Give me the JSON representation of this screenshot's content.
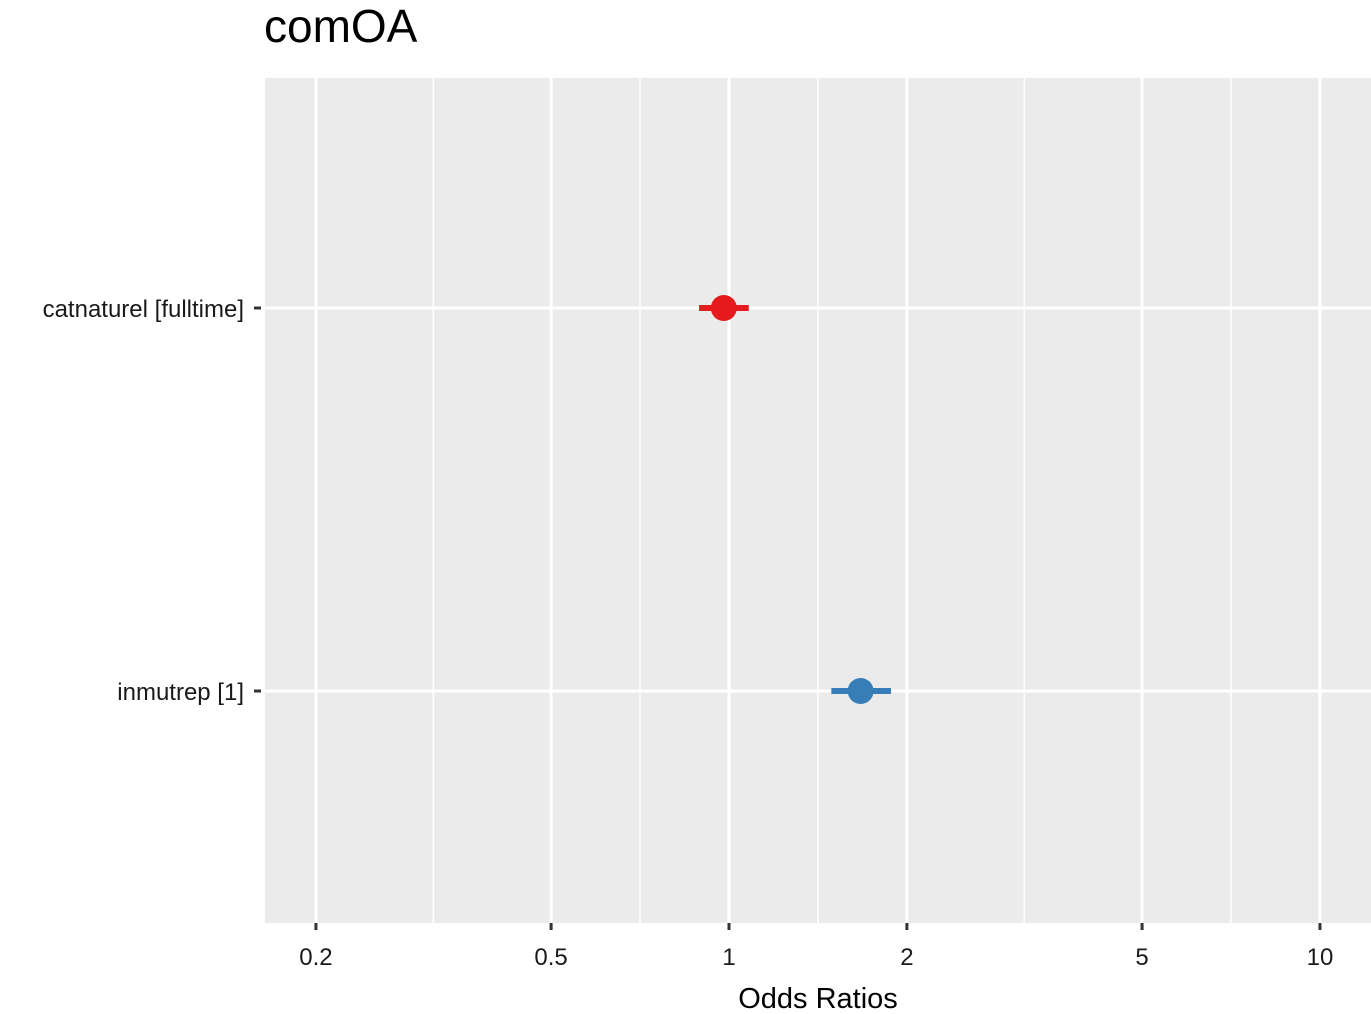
{
  "chart_data": {
    "type": "forest",
    "title": "comOA",
    "xlabel": "Odds Ratios",
    "ylabel": "",
    "x_scale": "log10",
    "xlim": [
      0.164,
      12.2
    ],
    "x_ticks": [
      0.2,
      0.5,
      1,
      2,
      5,
      10
    ],
    "x_tick_labels": [
      "0.2",
      "0.5",
      "1",
      "2",
      "5",
      "10"
    ],
    "x_minor_gridlines": [
      0.316,
      0.707,
      1.414,
      3.16,
      7.07
    ],
    "grid": true,
    "panel_background": "#EBEBEB",
    "terms": [
      {
        "label": "catnaturel [fulltime]",
        "estimate": 0.98,
        "ci_low": 0.89,
        "ci_high": 1.08,
        "color": "#E41A1C"
      },
      {
        "label": "inmutrep [1]",
        "estimate": 1.67,
        "ci_low": 1.49,
        "ci_high": 1.88,
        "color": "#377EB8"
      }
    ]
  }
}
